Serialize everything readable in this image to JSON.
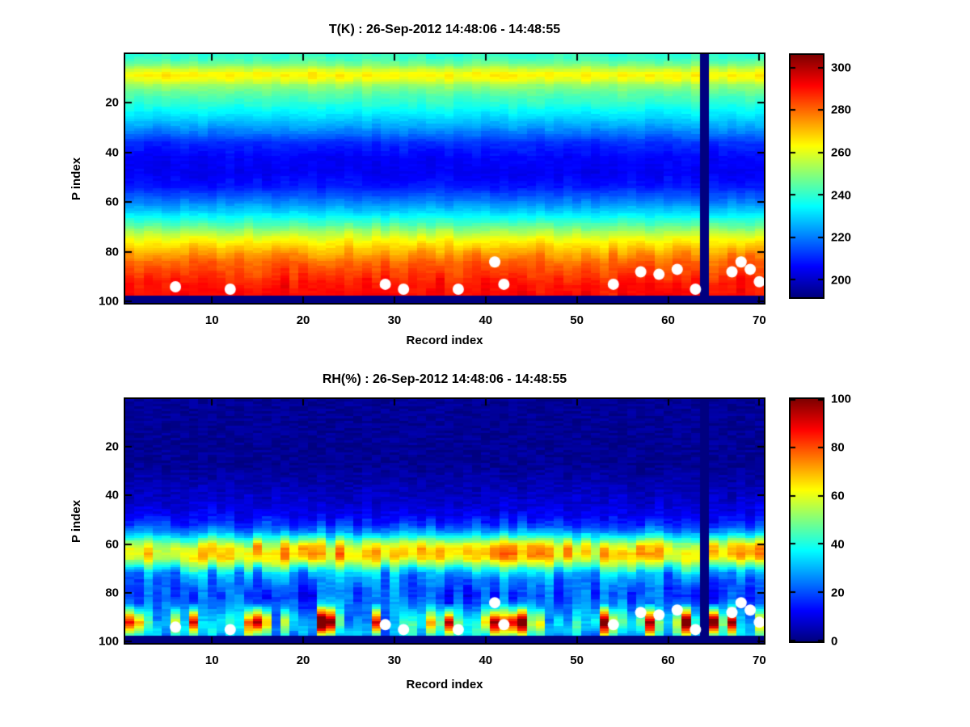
{
  "figure": {
    "background": "#ffffff",
    "axis_color": "#000000",
    "missing_data_color_note": "lowest colormap value (dark navy)"
  },
  "chart_data": [
    {
      "type": "heatmap",
      "title": "T(K) : 26-Sep-2012 14:48:06 - 14:48:55",
      "xlabel": "Record index",
      "ylabel": "P index",
      "colormap": "jet",
      "n_records": 70,
      "n_levels": 100,
      "x_ticks": [
        10,
        20,
        30,
        40,
        50,
        60,
        70
      ],
      "y_ticks": [
        20,
        40,
        60,
        80,
        100
      ],
      "y_axis_direction": "down",
      "clim": [
        192,
        306
      ],
      "colorbar": {
        "ticks": [
          200,
          220,
          240,
          260,
          280,
          300
        ],
        "range": [
          192,
          306
        ]
      },
      "missing_record": 64,
      "missing_bottom_levels": 3,
      "profile": [
        [
          1,
          240
        ],
        [
          3,
          243
        ],
        [
          5,
          249
        ],
        [
          8,
          263
        ],
        [
          9,
          264
        ],
        [
          11,
          260
        ],
        [
          13,
          252
        ],
        [
          16,
          246
        ],
        [
          20,
          240
        ],
        [
          25,
          232
        ],
        [
          30,
          224
        ],
        [
          36,
          211
        ],
        [
          42,
          206
        ],
        [
          48,
          205
        ],
        [
          54,
          209
        ],
        [
          60,
          221
        ],
        [
          64,
          230
        ],
        [
          68,
          241
        ],
        [
          71,
          251
        ],
        [
          74,
          260
        ],
        [
          77,
          267
        ],
        [
          80,
          273
        ],
        [
          84,
          281
        ],
        [
          88,
          285
        ],
        [
          93,
          290
        ],
        [
          97,
          291
        ]
      ],
      "noise_mode": "abs",
      "col_amp": [
        [
          1,
          2.2
        ],
        [
          5,
          3
        ],
        [
          12,
          3
        ],
        [
          20,
          2
        ],
        [
          60,
          2
        ],
        [
          72,
          3.2
        ],
        [
          80,
          4.5
        ],
        [
          100,
          4.5
        ]
      ],
      "cell_amp": 1.3,
      "seed": 1337,
      "dots": [
        [
          6,
          94
        ],
        [
          12,
          95
        ],
        [
          29,
          93
        ],
        [
          31,
          95
        ],
        [
          37,
          95
        ],
        [
          41,
          84
        ],
        [
          42,
          93
        ],
        [
          54,
          93
        ],
        [
          57,
          88
        ],
        [
          59,
          89
        ],
        [
          61,
          87
        ],
        [
          63,
          95
        ],
        [
          67,
          88
        ],
        [
          68,
          84
        ],
        [
          69,
          87
        ],
        [
          70,
          92
        ]
      ],
      "dot_color": "#ffffff"
    },
    {
      "type": "heatmap",
      "title": "RH(%) : 26-Sep-2012 14:48:06 - 14:48:55",
      "xlabel": "Record index",
      "ylabel": "P index",
      "colormap": "jet",
      "n_records": 70,
      "n_levels": 100,
      "x_ticks": [
        10,
        20,
        30,
        40,
        50,
        60,
        70
      ],
      "y_ticks": [
        20,
        40,
        60,
        80,
        100
      ],
      "y_axis_direction": "down",
      "clim": [
        0,
        100
      ],
      "colorbar": {
        "ticks": [
          0,
          20,
          40,
          60,
          80,
          100
        ],
        "range": [
          0,
          100
        ]
      },
      "missing_record": 64,
      "missing_bottom_levels": 3,
      "profile": [
        [
          1,
          2
        ],
        [
          28,
          2
        ],
        [
          33,
          4
        ],
        [
          38,
          6
        ],
        [
          43,
          8
        ],
        [
          48,
          12
        ],
        [
          52,
          18
        ],
        [
          55,
          28
        ],
        [
          58,
          45
        ],
        [
          60,
          58
        ],
        [
          62,
          65
        ],
        [
          64,
          67
        ],
        [
          66,
          63
        ],
        [
          68,
          52
        ],
        [
          70,
          40
        ],
        [
          72,
          30
        ],
        [
          75,
          24
        ],
        [
          78,
          21
        ],
        [
          81,
          20
        ],
        [
          84,
          23
        ],
        [
          87,
          27
        ],
        [
          90,
          32
        ],
        [
          93,
          35
        ],
        [
          96,
          33
        ],
        [
          98,
          28
        ]
      ],
      "noise_mode": "rel",
      "col_amp": [
        [
          1,
          0.2
        ],
        [
          40,
          0.3
        ],
        [
          50,
          0.3
        ],
        [
          55,
          0.25
        ],
        [
          62,
          0.18
        ],
        [
          68,
          0.22
        ],
        [
          74,
          0.4
        ],
        [
          80,
          0.5
        ],
        [
          100,
          0.55
        ]
      ],
      "cell_amp": 2.5,
      "blobs": {
        "zone": [
          83,
          98
        ],
        "peak": 92,
        "half_width": 8,
        "max": 80
      },
      "seed": 9001,
      "dots": [
        [
          6,
          94
        ],
        [
          12,
          95
        ],
        [
          29,
          93
        ],
        [
          31,
          95
        ],
        [
          37,
          95
        ],
        [
          41,
          84
        ],
        [
          42,
          93
        ],
        [
          54,
          93
        ],
        [
          57,
          88
        ],
        [
          59,
          89
        ],
        [
          61,
          87
        ],
        [
          63,
          95
        ],
        [
          67,
          88
        ],
        [
          68,
          84
        ],
        [
          69,
          87
        ],
        [
          70,
          92
        ]
      ],
      "dot_color": "#ffffff"
    }
  ]
}
